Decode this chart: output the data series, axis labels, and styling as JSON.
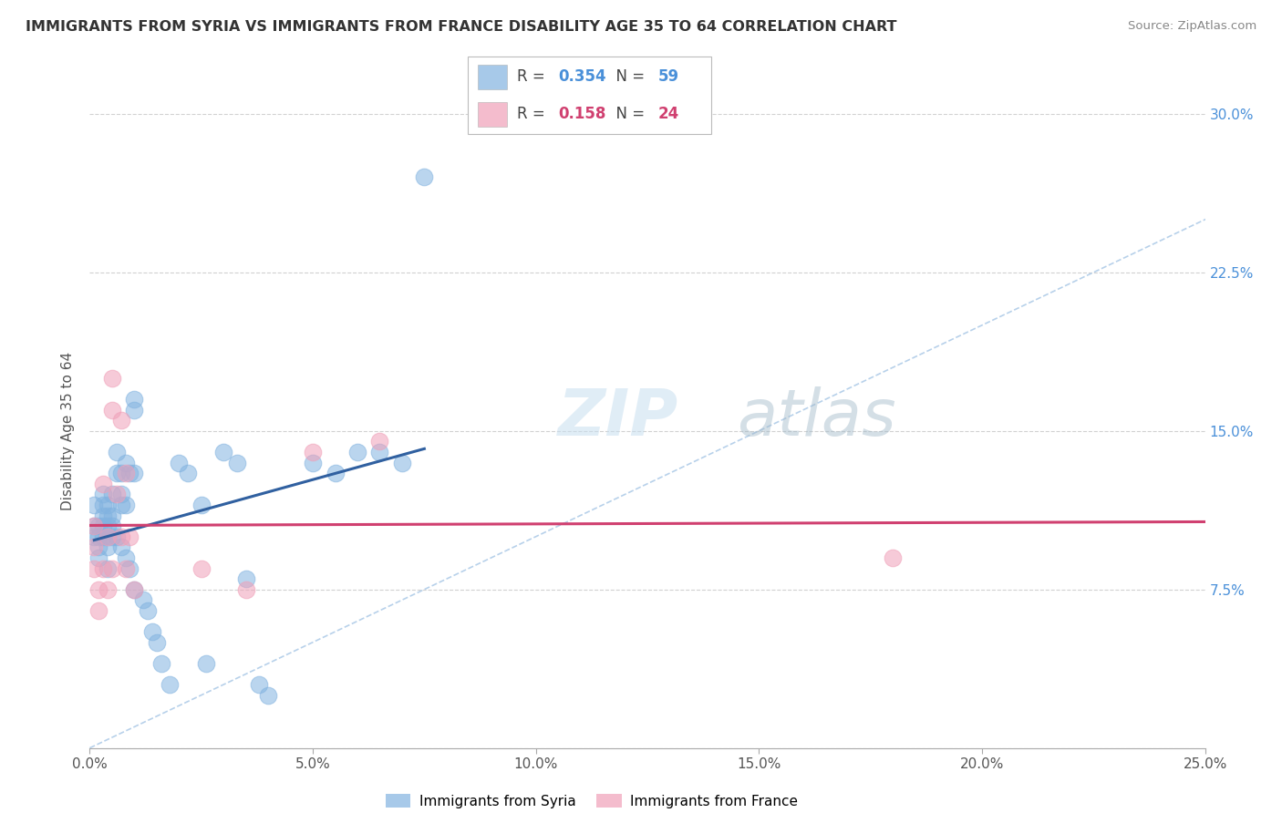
{
  "title": "IMMIGRANTS FROM SYRIA VS IMMIGRANTS FROM FRANCE DISABILITY AGE 35 TO 64 CORRELATION CHART",
  "source": "Source: ZipAtlas.com",
  "ylabel": "Disability Age 35 to 64",
  "xlim": [
    0.0,
    0.25
  ],
  "ylim": [
    0.0,
    0.3
  ],
  "xticks": [
    0.0,
    0.05,
    0.1,
    0.15,
    0.2,
    0.25
  ],
  "yticks": [
    0.0,
    0.075,
    0.15,
    0.225,
    0.3
  ],
  "xticklabels": [
    "0.0%",
    "5.0%",
    "10.0%",
    "15.0%",
    "20.0%",
    "25.0%"
  ],
  "yticklabels_right": [
    "",
    "7.5%",
    "15.0%",
    "22.5%",
    "30.0%"
  ],
  "syria_color": "#82b3e0",
  "france_color": "#f0a0b8",
  "syria_line_color": "#3060a0",
  "france_line_color": "#d04070",
  "diag_line_color": "#b0cce8",
  "legend_R_syria": "0.354",
  "legend_N_syria": "59",
  "legend_R_france": "0.158",
  "legend_N_france": "24",
  "syria_color_text": "#4a90d9",
  "france_color_text": "#d04070",
  "syria_x": [
    0.001,
    0.001,
    0.001,
    0.002,
    0.002,
    0.002,
    0.002,
    0.003,
    0.003,
    0.003,
    0.003,
    0.003,
    0.004,
    0.004,
    0.004,
    0.004,
    0.004,
    0.004,
    0.005,
    0.005,
    0.005,
    0.005,
    0.006,
    0.006,
    0.006,
    0.007,
    0.007,
    0.007,
    0.007,
    0.008,
    0.008,
    0.008,
    0.009,
    0.009,
    0.01,
    0.01,
    0.01,
    0.01,
    0.012,
    0.013,
    0.014,
    0.015,
    0.016,
    0.018,
    0.02,
    0.022,
    0.025,
    0.026,
    0.03,
    0.033,
    0.035,
    0.038,
    0.04,
    0.05,
    0.055,
    0.06,
    0.065,
    0.07,
    0.075
  ],
  "syria_y": [
    0.115,
    0.105,
    0.1,
    0.105,
    0.1,
    0.095,
    0.09,
    0.12,
    0.115,
    0.11,
    0.105,
    0.1,
    0.115,
    0.11,
    0.105,
    0.1,
    0.095,
    0.085,
    0.12,
    0.11,
    0.105,
    0.1,
    0.14,
    0.13,
    0.1,
    0.13,
    0.12,
    0.115,
    0.095,
    0.135,
    0.115,
    0.09,
    0.13,
    0.085,
    0.165,
    0.16,
    0.13,
    0.075,
    0.07,
    0.065,
    0.055,
    0.05,
    0.04,
    0.03,
    0.135,
    0.13,
    0.115,
    0.04,
    0.14,
    0.135,
    0.08,
    0.03,
    0.025,
    0.135,
    0.13,
    0.14,
    0.14,
    0.135,
    0.27
  ],
  "france_x": [
    0.001,
    0.001,
    0.001,
    0.002,
    0.002,
    0.003,
    0.003,
    0.004,
    0.004,
    0.005,
    0.005,
    0.005,
    0.006,
    0.007,
    0.007,
    0.008,
    0.008,
    0.009,
    0.01,
    0.025,
    0.035,
    0.05,
    0.065,
    0.18
  ],
  "france_y": [
    0.105,
    0.095,
    0.085,
    0.075,
    0.065,
    0.125,
    0.085,
    0.1,
    0.075,
    0.175,
    0.16,
    0.085,
    0.12,
    0.155,
    0.1,
    0.13,
    0.085,
    0.1,
    0.075,
    0.085,
    0.075,
    0.14,
    0.145,
    0.09
  ],
  "background_color": "#ffffff",
  "grid_color": "#cccccc"
}
